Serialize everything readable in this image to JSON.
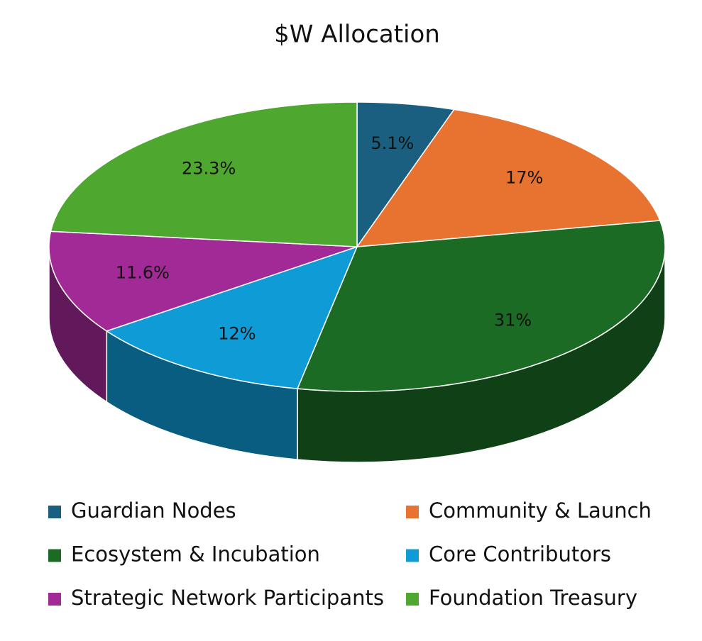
{
  "chart_data": {
    "type": "pie",
    "title": "$W Allocation",
    "categories": [
      "Guardian Nodes",
      "Community & Launch",
      "Ecosystem & Incubation",
      "Core Contributors",
      "Strategic Network Participants",
      "Foundation Treasury"
    ],
    "values": [
      5.1,
      17,
      31,
      12,
      11.6,
      23.3
    ],
    "value_labels": [
      "5.1%",
      "17%",
      "31%",
      "12%",
      "11.6%",
      "23.3%"
    ],
    "colors": [
      "#1a5f80",
      "#e87331",
      "#1b6b25",
      "#0f9bd6",
      "#a22a97",
      "#4ea72e"
    ]
  }
}
